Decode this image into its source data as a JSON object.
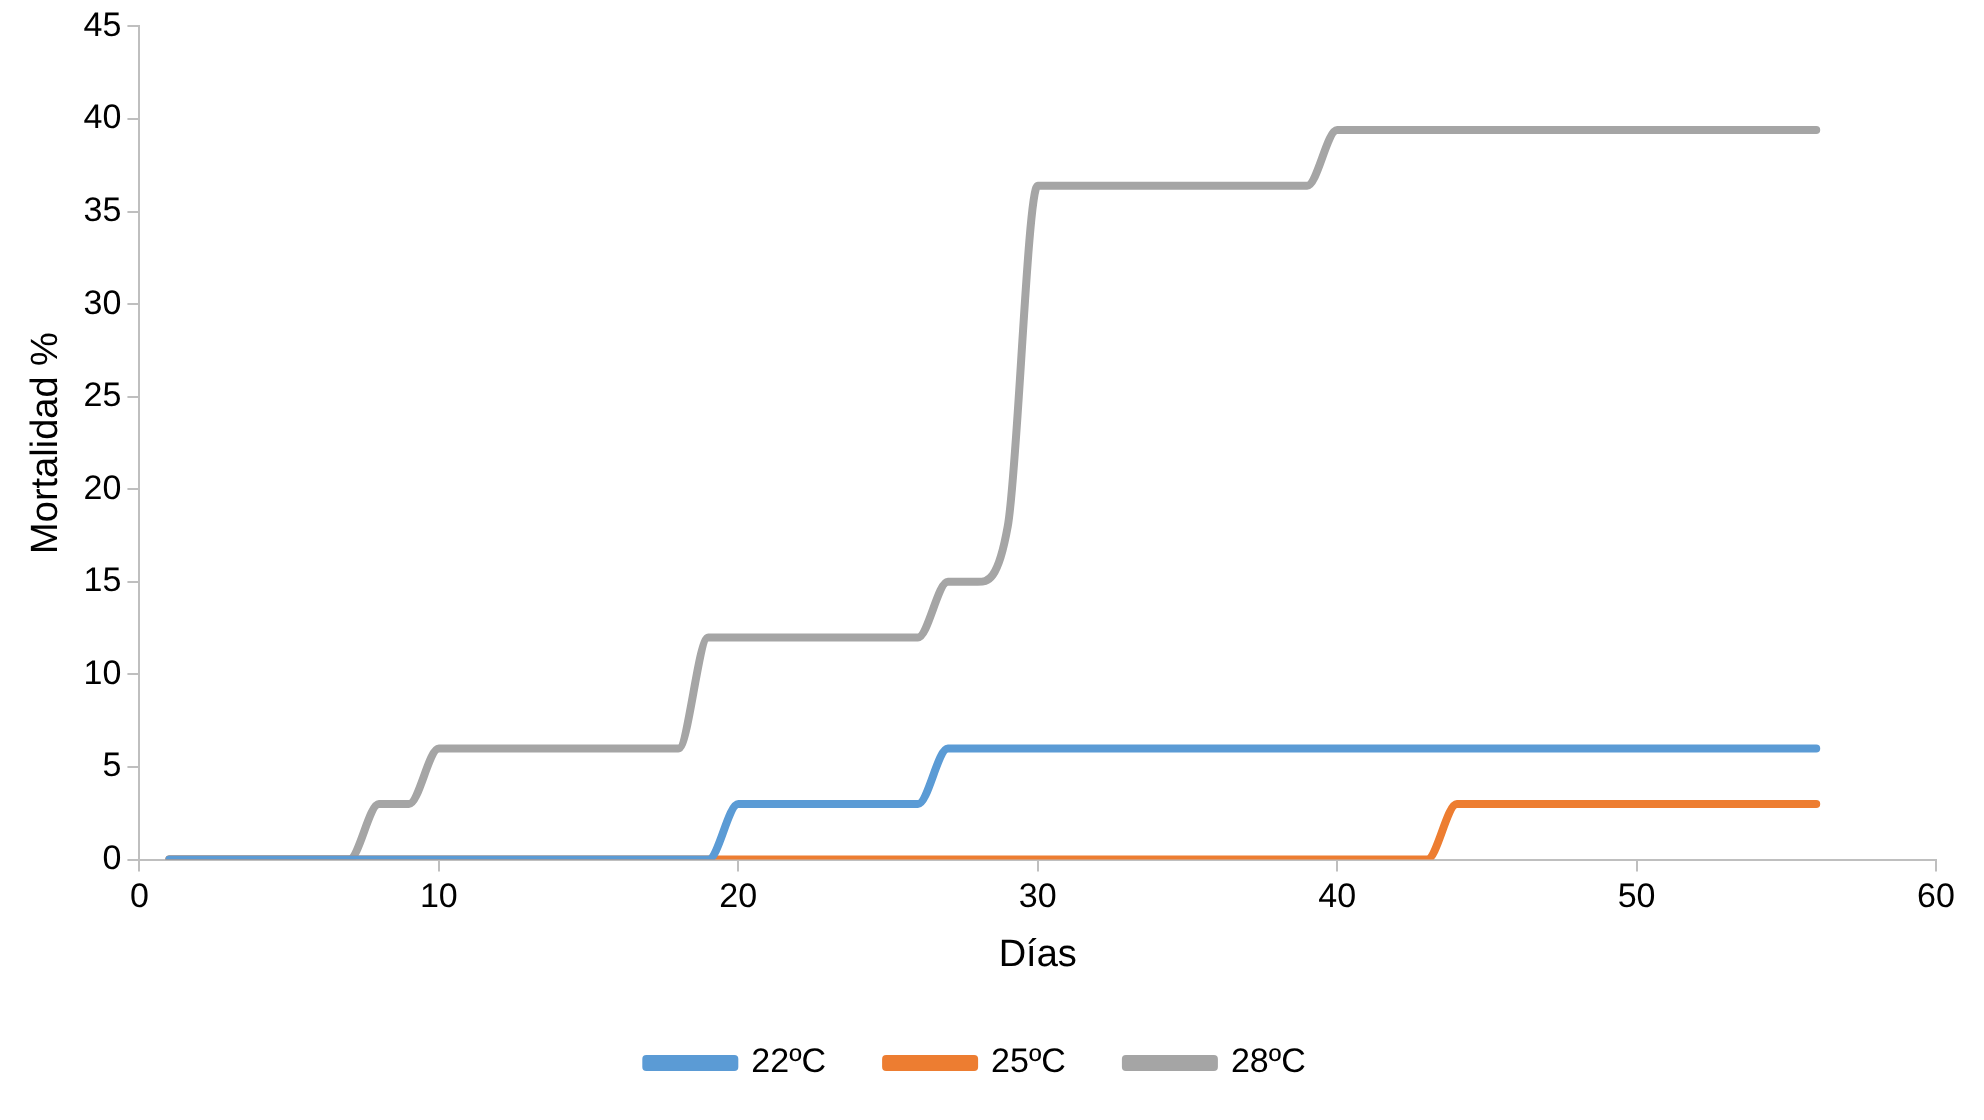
{
  "chart_data": {
    "type": "line",
    "xlabel": "Días",
    "ylabel": "Mortalidad %",
    "xlim": [
      0,
      60
    ],
    "ylim": [
      0,
      45
    ],
    "xticks": [
      0,
      10,
      20,
      30,
      40,
      50,
      60
    ],
    "yticks": [
      0,
      5,
      10,
      15,
      20,
      25,
      30,
      35,
      40,
      45
    ],
    "legend": "bottom",
    "series": [
      {
        "name": "22ºC",
        "color": "#5b9bd5",
        "x": [
          1,
          19,
          20,
          21,
          25,
          26,
          27,
          28,
          56
        ],
        "values": [
          0,
          0,
          3,
          3,
          3,
          3,
          6,
          6,
          6
        ]
      },
      {
        "name": "25ºC",
        "color": "#ed7d31",
        "x": [
          1,
          7,
          43,
          44,
          45,
          56
        ],
        "values": [
          0,
          0,
          0,
          3,
          3,
          3
        ]
      },
      {
        "name": "28ºC",
        "color": "#a5a5a5",
        "x": [
          1,
          7,
          8,
          9,
          10,
          11,
          17,
          18,
          19,
          20,
          25,
          26,
          27,
          28,
          29,
          30,
          31,
          38,
          39,
          40,
          41,
          56
        ],
        "values": [
          0,
          0,
          3,
          3,
          6,
          6,
          6,
          6,
          12,
          12,
          12,
          12,
          15,
          15,
          18,
          36.4,
          36.4,
          36.4,
          36.4,
          39.4,
          39.4,
          39.4
        ]
      }
    ]
  }
}
